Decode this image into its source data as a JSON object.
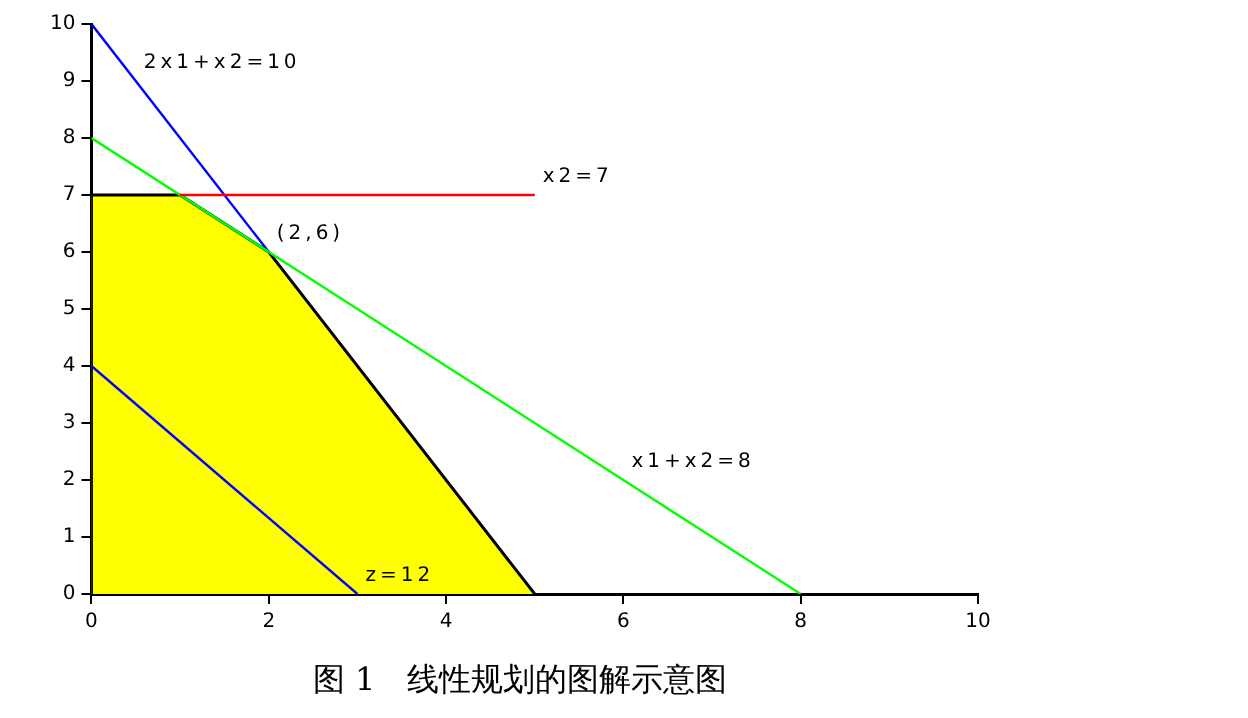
{
  "chart_data": {
    "type": "line",
    "title": "图 1　线性规划的图解示意图",
    "xlim": [
      0,
      10
    ],
    "xticks": [
      0,
      2,
      4,
      6,
      8,
      10
    ],
    "ylim": [
      0,
      10
    ],
    "yticks": [
      0,
      1,
      2,
      3,
      4,
      5,
      6,
      7,
      8,
      9,
      10
    ],
    "grid": false,
    "legend": false,
    "marker": "none",
    "line_style": "solid",
    "series": [
      {
        "type": "area",
        "color": "#ffff00",
        "x": [
          0,
          0,
          1,
          2,
          5
        ],
        "values": [
          0,
          7,
          7,
          6,
          0
        ]
      },
      {
        "color": "#0000ff",
        "x": [
          0,
          2
        ],
        "values": [
          10,
          6
        ]
      },
      {
        "color": "#00ff00",
        "x": [
          0,
          8
        ],
        "values": [
          8,
          0
        ]
      },
      {
        "color": "#ff0000",
        "x": [
          1,
          5
        ],
        "values": [
          7,
          7
        ]
      },
      {
        "color": "#0000ff",
        "x": [
          0,
          3
        ],
        "values": [
          4,
          0
        ]
      }
    ],
    "annotations": [
      {
        "text": "2x1+x2=10",
        "x": 0.5,
        "y": 9
      },
      {
        "text": "x2=7",
        "x": 5,
        "y": 7
      },
      {
        "text": "(2,6)",
        "x": 2,
        "y": 6
      },
      {
        "text": "x1+x2=8",
        "x": 6,
        "y": 2
      },
      {
        "text": "z=12",
        "x": 3,
        "y": 0
      }
    ]
  }
}
